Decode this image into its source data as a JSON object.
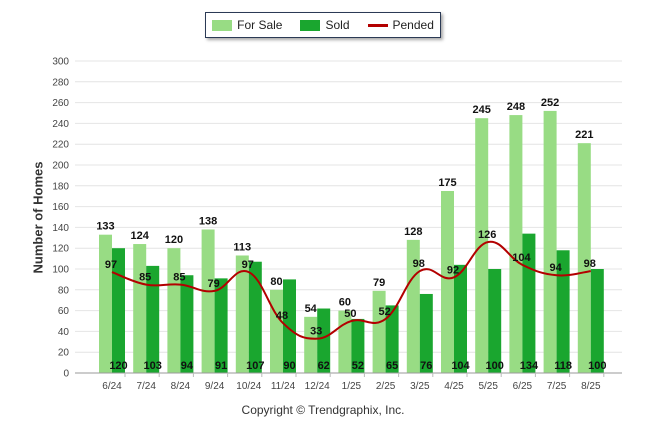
{
  "chart_data": {
    "type": "bar",
    "categories": [
      "6/24",
      "7/24",
      "8/24",
      "9/24",
      "10/24",
      "11/24",
      "12/24",
      "1/25",
      "2/25",
      "3/25",
      "4/25",
      "5/25",
      "6/25",
      "7/25",
      "8/25"
    ],
    "series": [
      {
        "name": "For Sale",
        "type": "bar",
        "color": "#98dc84",
        "values": [
          133,
          124,
          120,
          138,
          113,
          80,
          54,
          60,
          79,
          128,
          175,
          245,
          248,
          252,
          221
        ]
      },
      {
        "name": "Sold",
        "type": "bar",
        "color": "#1aa62f",
        "values": [
          120,
          103,
          94,
          91,
          107,
          90,
          62,
          52,
          65,
          76,
          104,
          100,
          134,
          118,
          100
        ]
      },
      {
        "name": "Pended",
        "type": "line",
        "color": "#b30000",
        "values": [
          97,
          85,
          85,
          79,
          97,
          48,
          33,
          50,
          52,
          98,
          92,
          126,
          104,
          94,
          98
        ]
      }
    ],
    "ylabel": "Number of Homes",
    "xlabel": "",
    "ylim": [
      0,
      300
    ],
    "ytick_step": 20,
    "grid": true,
    "legend_position": "top-center"
  },
  "credits": "Copyright © Trendgraphix, Inc."
}
